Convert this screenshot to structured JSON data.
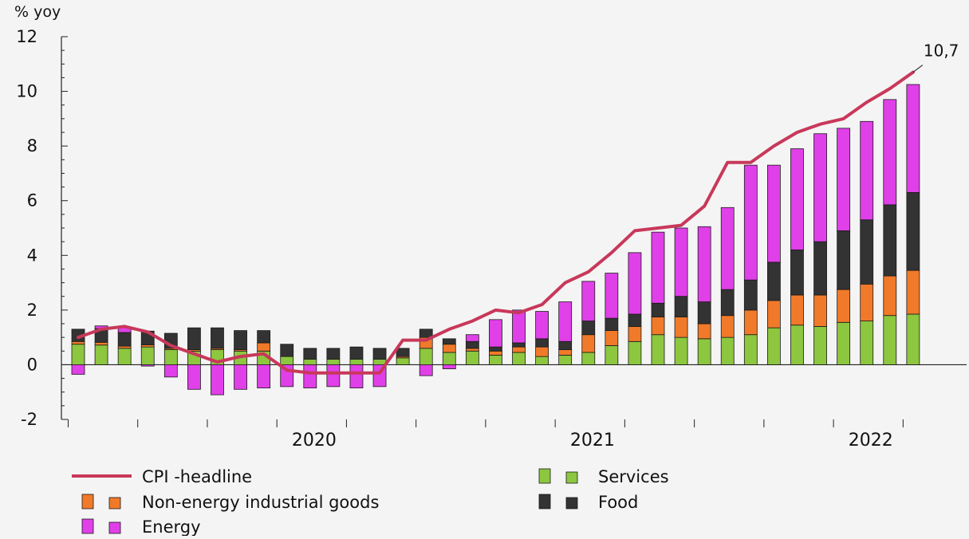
{
  "chart_data": {
    "type": "bar",
    "subtype": "stacked-bar-with-line",
    "ylabel": "% yoy",
    "ylim": [
      -2,
      12
    ],
    "yticks": [
      -2,
      0,
      2,
      4,
      6,
      8,
      10,
      12
    ],
    "x_axis_labels": [
      "2020",
      "2021",
      "2022"
    ],
    "categories": [
      "2019-07",
      "2019-08",
      "2019-09",
      "2019-10",
      "2019-11",
      "2019-12",
      "2020-01",
      "2020-02",
      "2020-03",
      "2020-04",
      "2020-05",
      "2020-06",
      "2020-07",
      "2020-08",
      "2020-09",
      "2020-10",
      "2020-11",
      "2020-12",
      "2021-01",
      "2021-02",
      "2021-03",
      "2021-04",
      "2021-05",
      "2021-06",
      "2021-07",
      "2021-08",
      "2021-09",
      "2021-10",
      "2021-11",
      "2021-12",
      "2022-01",
      "2022-02",
      "2022-03",
      "2022-04",
      "2022-05",
      "2022-06",
      "2022-07",
      "2022-08",
      "2022-09"
    ],
    "series": [
      {
        "name": "Services",
        "type": "bar",
        "color": "#8dc63f",
        "values": [
          0.75,
          0.72,
          0.6,
          0.65,
          0.55,
          0.5,
          0.55,
          0.5,
          0.5,
          0.3,
          0.2,
          0.2,
          0.2,
          0.2,
          0.25,
          0.6,
          0.45,
          0.5,
          0.35,
          0.45,
          0.3,
          0.35,
          0.45,
          0.7,
          0.85,
          1.1,
          1.0,
          0.95,
          1.0,
          1.1,
          1.35,
          1.45,
          1.4,
          1.55,
          1.6,
          1.8,
          1.85,
          0,
          0
        ]
      },
      {
        "name": "Non-energy industrial goods",
        "type": "bar",
        "color": "#f07a2a",
        "values": [
          0.1,
          0.1,
          0.08,
          0.08,
          0.05,
          0.05,
          0.05,
          0.05,
          0.3,
          0.0,
          0.0,
          0.0,
          0.0,
          0.0,
          0.05,
          0.4,
          0.3,
          0.1,
          0.15,
          0.2,
          0.35,
          0.2,
          0.65,
          0.55,
          0.55,
          0.65,
          0.75,
          0.55,
          0.8,
          0.9,
          1.0,
          1.1,
          1.15,
          1.2,
          1.35,
          1.45,
          1.6,
          0,
          0
        ]
      },
      {
        "name": "Food",
        "type": "bar",
        "color": "#333333",
        "values": [
          0.45,
          0.5,
          0.5,
          0.5,
          0.55,
          0.8,
          0.75,
          0.7,
          0.45,
          0.45,
          0.4,
          0.4,
          0.45,
          0.4,
          0.3,
          0.3,
          0.2,
          0.25,
          0.15,
          0.15,
          0.3,
          0.3,
          0.5,
          0.45,
          0.45,
          0.5,
          0.75,
          0.8,
          0.95,
          1.1,
          1.4,
          1.65,
          1.95,
          2.15,
          2.35,
          2.6,
          2.85,
          0,
          0
        ]
      },
      {
        "name": "Energy",
        "type": "bar",
        "color": "#e040e8",
        "values": [
          -0.35,
          0.1,
          0.2,
          -0.05,
          -0.45,
          -0.9,
          -1.1,
          -0.9,
          -0.85,
          -0.8,
          -0.85,
          -0.8,
          -0.85,
          -0.8,
          0.0,
          -0.4,
          -0.15,
          0.25,
          1.0,
          1.2,
          1.0,
          1.45,
          1.45,
          1.65,
          2.25,
          2.6,
          2.5,
          2.75,
          3.0,
          4.2,
          3.55,
          3.7,
          3.95,
          3.75,
          3.6,
          3.85,
          3.95,
          0,
          0
        ]
      },
      {
        "name": "CPI -headline",
        "type": "line",
        "color": "#c8385a",
        "values": [
          1.0,
          1.3,
          1.4,
          1.2,
          0.7,
          0.4,
          0.1,
          0.3,
          0.4,
          -0.2,
          -0.3,
          -0.3,
          -0.3,
          -0.3,
          0.9,
          0.9,
          1.3,
          1.6,
          2.0,
          1.9,
          2.2,
          3.0,
          3.4,
          4.1,
          4.9,
          5.0,
          5.1,
          5.8,
          7.4,
          7.4,
          8.0,
          8.5,
          8.8,
          9.0,
          9.6,
          10.1,
          10.7,
          null,
          null
        ]
      }
    ],
    "annotations": [
      {
        "text": "10,7"
      }
    ],
    "legend": {
      "placement": "bottom",
      "items": [
        {
          "label": "CPI -headline",
          "kind": "line",
          "color": "#c8385a"
        },
        {
          "label": "Services",
          "kind": "box",
          "color": "#8dc63f"
        },
        {
          "label": "Non-energy industrial goods",
          "kind": "box",
          "color": "#f07a2a"
        },
        {
          "label": "Food",
          "kind": "box",
          "color": "#333333"
        },
        {
          "label": "Energy",
          "kind": "box",
          "color": "#e040e8"
        }
      ]
    },
    "grid": false
  }
}
